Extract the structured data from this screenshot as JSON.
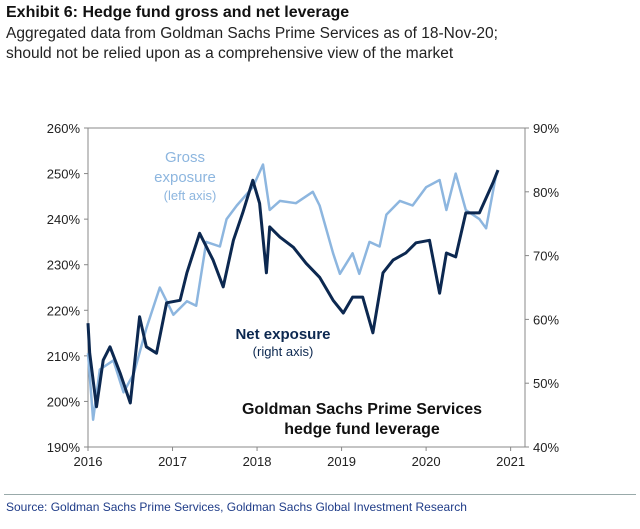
{
  "header": {
    "title": "Exhibit 6: Hedge fund gross and net leverage",
    "subtitle_line1": "Aggregated data from Goldman Sachs Prime Services as of 18-Nov-20;",
    "subtitle_line2": "should not be relied upon as a comprehensive view of the market"
  },
  "source": "Source: Goldman Sachs Prime Services, Goldman Sachs Global Investment Research",
  "chart_data": {
    "type": "line",
    "title": "Goldman Sachs Prime Services hedge fund leverage",
    "title_line1": "Goldman Sachs Prime Services",
    "title_line2": "hedge fund leverage",
    "xlim": [
      2016,
      2021.17
    ],
    "x_ticks": [
      2016,
      2017,
      2018,
      2019,
      2020,
      2021
    ],
    "x_tick_labels": [
      "2016",
      "2017",
      "2018",
      "2019",
      "2020",
      "2021"
    ],
    "y_left": {
      "lim": [
        190,
        260
      ],
      "ticks": [
        190,
        200,
        210,
        220,
        230,
        240,
        250,
        260
      ],
      "tick_labels": [
        "190%",
        "200%",
        "210%",
        "220%",
        "230%",
        "240%",
        "250%",
        "260%"
      ]
    },
    "y_right": {
      "lim": [
        40,
        90
      ],
      "ticks": [
        40,
        50,
        60,
        70,
        80,
        90
      ],
      "tick_labels": [
        "40%",
        "50%",
        "60%",
        "70%",
        "80%",
        "90%"
      ]
    },
    "grid": false,
    "series": [
      {
        "name": "Gross exposure",
        "label_line1": "Gross",
        "label_line2": "exposure",
        "label_line3": "(left axis)",
        "axis": "left",
        "color": "#8db6df",
        "x": [
          2016.0,
          2016.06,
          2016.14,
          2016.3,
          2016.42,
          2016.54,
          2016.69,
          2016.85,
          2017.01,
          2017.17,
          2017.28,
          2017.4,
          2017.56,
          2017.64,
          2017.76,
          2017.95,
          2018.07,
          2018.15,
          2018.27,
          2018.46,
          2018.66,
          2018.74,
          2018.9,
          2018.98,
          2019.13,
          2019.21,
          2019.33,
          2019.45,
          2019.53,
          2019.69,
          2019.84,
          2020.0,
          2020.16,
          2020.24,
          2020.35,
          2020.47,
          2020.63,
          2020.71,
          2020.83
        ],
        "values": [
          210.6,
          196,
          207,
          209,
          202,
          206,
          216,
          225,
          219,
          222,
          221,
          235,
          234,
          240,
          243,
          247,
          252,
          242,
          244,
          243.5,
          246,
          243,
          232.5,
          228,
          232.5,
          228,
          235,
          234,
          241,
          244,
          243,
          247,
          248.6,
          242,
          250,
          242,
          240,
          238,
          250
        ]
      },
      {
        "name": "Net exposure",
        "label_line1": "Net exposure",
        "label_line2": "(right axis)",
        "axis": "right",
        "color": "#0c2850",
        "x": [
          2016.0,
          2016.02,
          2016.1,
          2016.18,
          2016.26,
          2016.38,
          2016.5,
          2016.61,
          2016.69,
          2016.81,
          2016.93,
          2017.09,
          2017.17,
          2017.32,
          2017.48,
          2017.6,
          2017.72,
          2017.83,
          2017.95,
          2018.03,
          2018.11,
          2018.15,
          2018.27,
          2018.43,
          2018.58,
          2018.74,
          2018.9,
          2019.02,
          2019.13,
          2019.25,
          2019.37,
          2019.49,
          2019.61,
          2019.76,
          2019.88,
          2020.04,
          2020.16,
          2020.24,
          2020.35,
          2020.47,
          2020.63,
          2020.79,
          2020.85
        ],
        "values": [
          59.4,
          54.7,
          46.3,
          53.6,
          55.7,
          51.6,
          46.9,
          60.4,
          55.7,
          54.7,
          62.6,
          63,
          67.3,
          73.5,
          69.3,
          65.1,
          72.4,
          76.7,
          81.8,
          78.2,
          67.3,
          74.5,
          72.9,
          71.3,
          68.8,
          66.6,
          63,
          61,
          63.5,
          63.5,
          57.9,
          67.3,
          69.3,
          70.4,
          72,
          72.4,
          64.1,
          70.4,
          69.8,
          76.7,
          76.7,
          81.4,
          83.4
        ]
      }
    ]
  }
}
